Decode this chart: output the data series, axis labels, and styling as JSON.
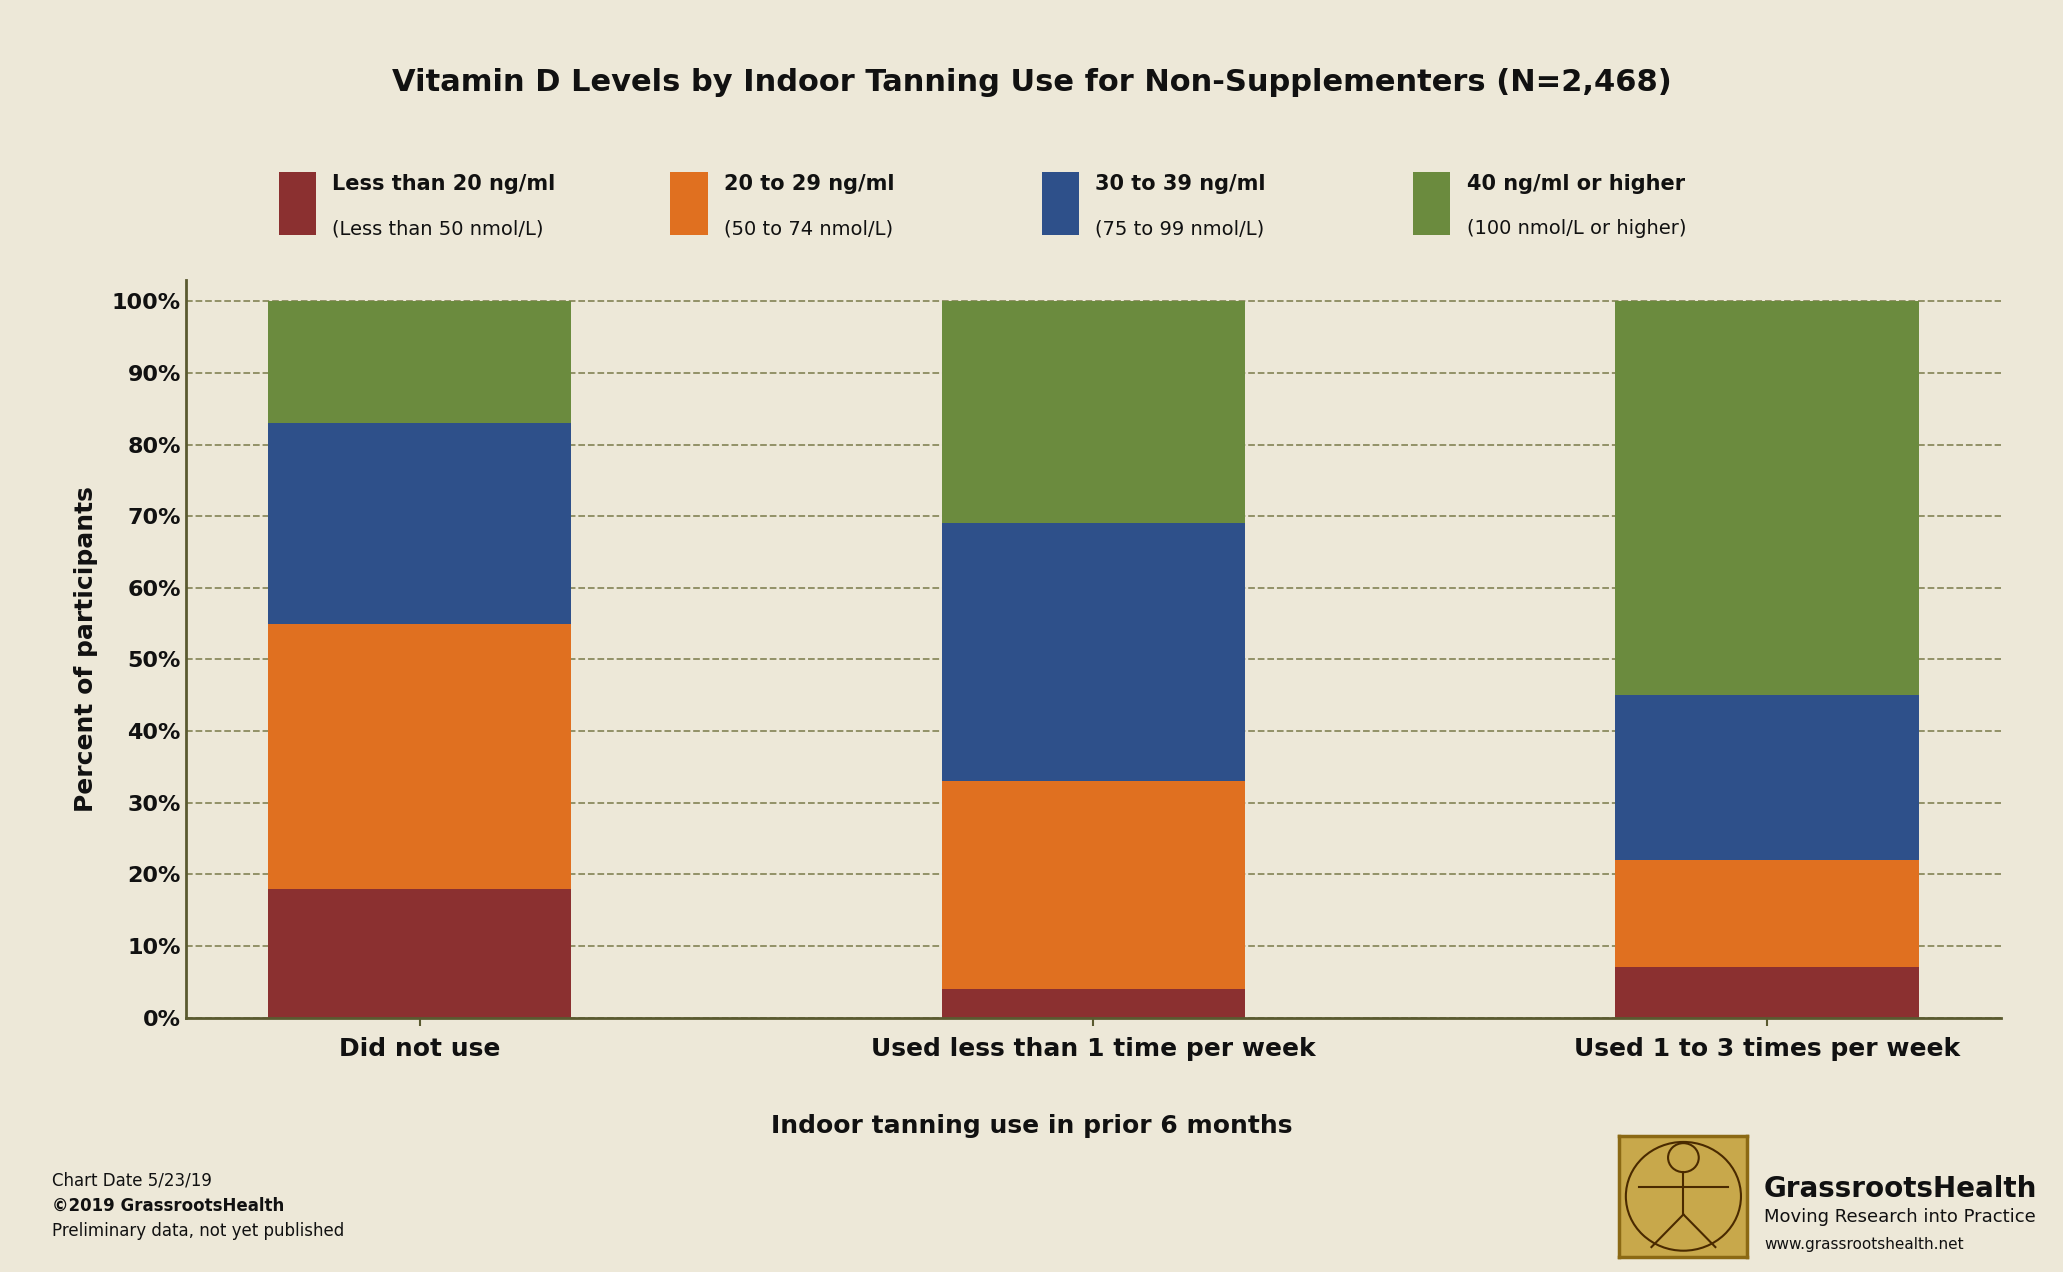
{
  "title": "Vitamin D Levels by Indoor Tanning Use for Non-Supplementers (N=2,468)",
  "categories": [
    "Did not use",
    "Used less than 1 time per week",
    "Used 1 to 3 times per week"
  ],
  "xlabel": "Indoor tanning use in prior 6 months",
  "ylabel": "Percent of participants",
  "background_color": "#EDE8D8",
  "bar_colors": [
    "#8B3030",
    "#E07020",
    "#2E508A",
    "#6B8B3E"
  ],
  "legend_labels_line1": [
    "Less than 20 ng/ml",
    "20 to 29 ng/ml",
    "30 to 39 ng/ml",
    "40 ng/ml or higher"
  ],
  "legend_labels_line2": [
    "(Less than 50 nmol/L)",
    "(50 to 74 nmol/L)",
    "(75 to 99 nmol/L)",
    "(100 nmol/L or higher)"
  ],
  "data_less20": [
    18,
    4,
    7
  ],
  "data_20to29": [
    37,
    29,
    15
  ],
  "data_30to39": [
    28,
    36,
    23
  ],
  "data_40plus": [
    17,
    31,
    55
  ],
  "yticks": [
    0,
    10,
    20,
    30,
    40,
    50,
    60,
    70,
    80,
    90,
    100
  ],
  "grid_color": "#7A7A4A",
  "axis_color": "#5A5A30",
  "title_fontsize": 22,
  "label_fontsize": 18,
  "tick_fontsize": 16,
  "legend_fontsize": 15,
  "footer_line1": "Chart Date 5/23/19",
  "footer_line2": "©2019 GrassrootsHealth",
  "footer_line3": "Preliminary data, not yet published",
  "brand_line1": "GrassrootsHealth",
  "brand_line2": "Moving Research into Practice",
  "brand_line3": "www.grassrootshealth.net"
}
